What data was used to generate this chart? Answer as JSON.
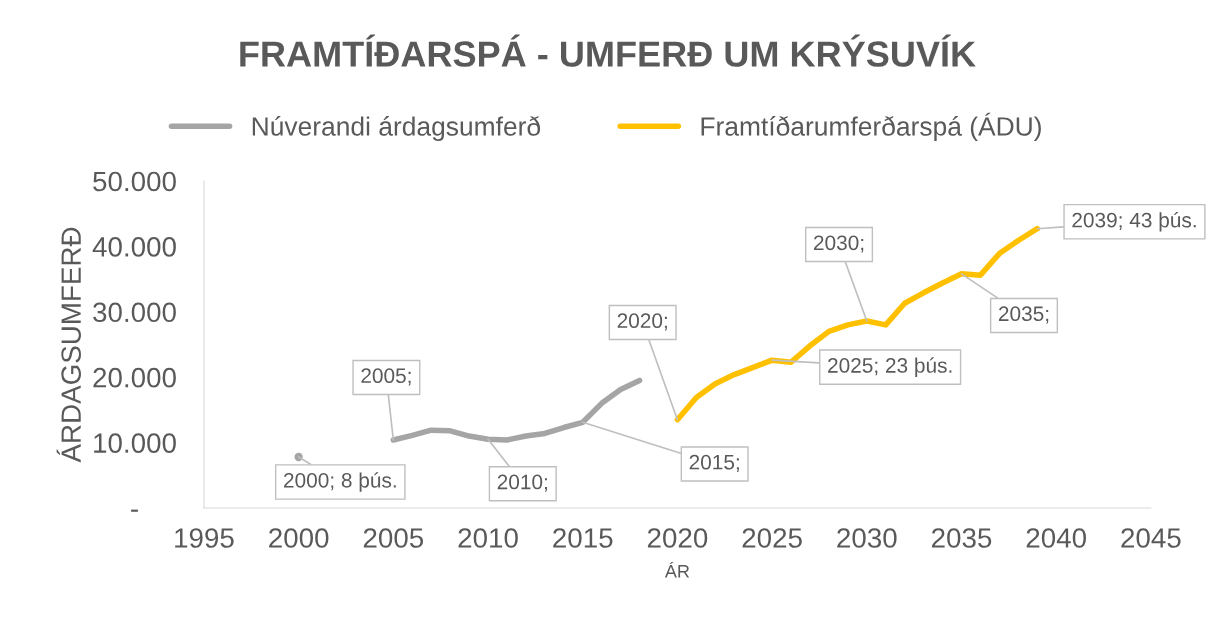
{
  "chart_data": {
    "type": "line",
    "title": "FRAMTÍÐARSPÁ - UMFERÐ UM KRÝSUVÍK",
    "xlabel": "ÁR",
    "ylabel": "ÁRDAGSUMFERÐ",
    "series": [
      {
        "name": "Núverandi árdagsumferð",
        "color": "#a5a5a5",
        "x": [
          2000,
          2001,
          2002,
          2003,
          2004,
          2005,
          2006,
          2007,
          2008,
          2009,
          2010,
          2011,
          2012,
          2013,
          2014,
          2015,
          2016,
          2017,
          2018
        ],
        "values": [
          7800,
          null,
          null,
          null,
          null,
          10400,
          11100,
          11900,
          11800,
          11000,
          10500,
          10400,
          11000,
          11400,
          12300,
          13100,
          16000,
          18100,
          19500
        ]
      },
      {
        "name": "Framtíðarumferðarspá (ÁDU)",
        "color": "#ffc000",
        "x": [
          2020,
          2021,
          2022,
          2023,
          2024,
          2025,
          2026,
          2027,
          2028,
          2029,
          2030,
          2031,
          2032,
          2033,
          2034,
          2035,
          2036,
          2037,
          2038,
          2039
        ],
        "values": [
          13500,
          16900,
          19000,
          20400,
          21500,
          22600,
          22300,
          24800,
          27000,
          28000,
          28600,
          28000,
          31300,
          32900,
          34400,
          35800,
          35600,
          38900,
          40900,
          42700
        ]
      }
    ],
    "xlim": [
      1995,
      2045
    ],
    "xticks": [
      1995,
      2000,
      2005,
      2010,
      2015,
      2020,
      2025,
      2030,
      2035,
      2040,
      2045
    ],
    "ylim": [
      0,
      50000
    ],
    "yticks": [
      {
        "value": 0,
        "label": "-"
      },
      {
        "value": 10000,
        "label": "10.000"
      },
      {
        "value": 20000,
        "label": "20.000"
      },
      {
        "value": 30000,
        "label": "30.000"
      },
      {
        "value": 40000,
        "label": "40.000"
      },
      {
        "value": 50000,
        "label": "50.000"
      }
    ],
    "annotations": [
      {
        "text": "2000; 8 þús.",
        "x": 2000,
        "y": 7800
      },
      {
        "text": "2005;",
        "x": 2005,
        "y": 10400
      },
      {
        "text": "2010;",
        "x": 2010,
        "y": 10500
      },
      {
        "text": "2015;",
        "x": 2015,
        "y": 13100
      },
      {
        "text": "2020;",
        "x": 2020,
        "y": 13500
      },
      {
        "text": "2025; 23 þús.",
        "x": 2025,
        "y": 22600
      },
      {
        "text": "2030;",
        "x": 2030,
        "y": 28600
      },
      {
        "text": "2035;",
        "x": 2035,
        "y": 35800
      },
      {
        "text": "2039; 43 þús.",
        "x": 2039,
        "y": 42700
      }
    ],
    "legend": "top",
    "grid": false,
    "marker": "none",
    "line_style": "solid"
  }
}
